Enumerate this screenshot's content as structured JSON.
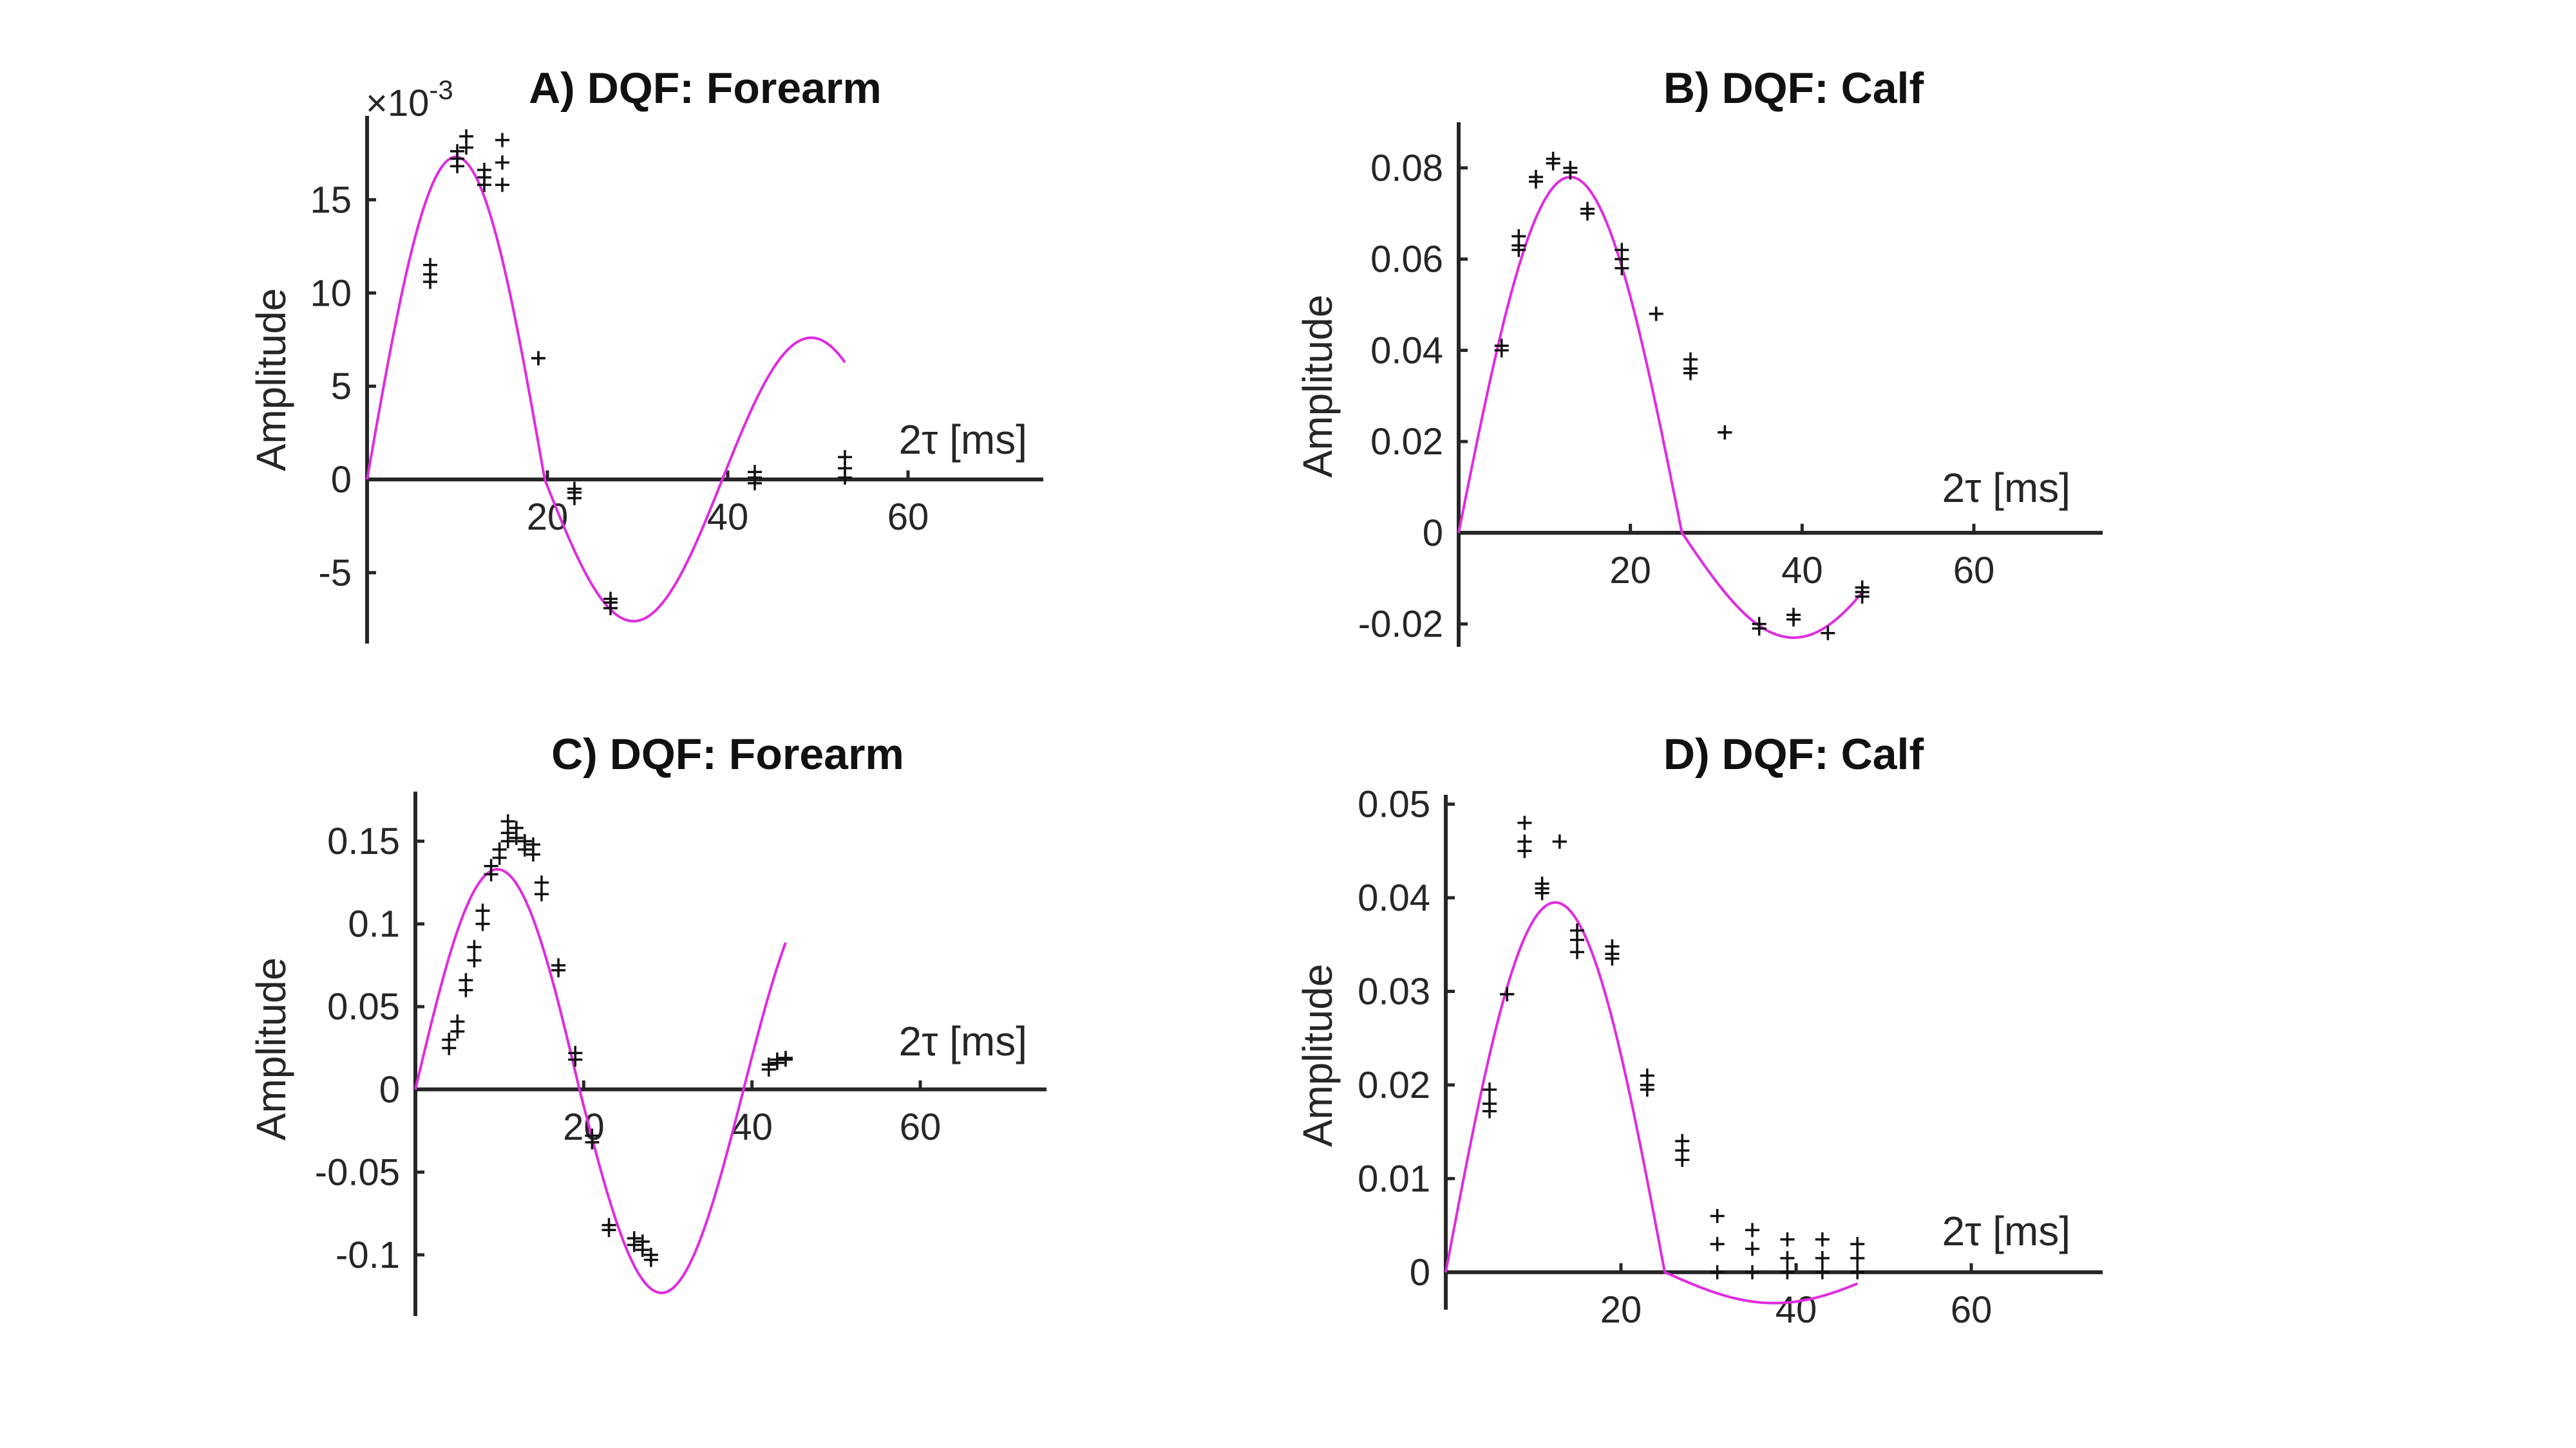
{
  "chart_data": [
    {
      "id": "A",
      "type": "scatter",
      "title": "A) DQF: Forearm",
      "xlabel": "2τ [ms]",
      "ylabel": "Amplitude",
      "y_exponent_label": "×10",
      "y_exponent_power": "-3",
      "xlim": [
        0,
        75
      ],
      "ylim": [
        -8.8,
        19.5
      ],
      "xticks": [
        20,
        40,
        60
      ],
      "yticks": [
        -5,
        0,
        5,
        10,
        15
      ],
      "points": [
        [
          7,
          11.5
        ],
        [
          7,
          10.6
        ],
        [
          7,
          11.0
        ],
        [
          10,
          17.6
        ],
        [
          10,
          16.8
        ],
        [
          10,
          17.2
        ],
        [
          11,
          18.4
        ],
        [
          11,
          17.8
        ],
        [
          13,
          16.6
        ],
        [
          13,
          15.8
        ],
        [
          13,
          16.2
        ],
        [
          15,
          18.2
        ],
        [
          15,
          15.8
        ],
        [
          15,
          17.0
        ],
        [
          19,
          6.5
        ],
        [
          19,
          6.5
        ],
        [
          23,
          -0.5
        ],
        [
          23,
          -1.0
        ],
        [
          23,
          -0.7
        ],
        [
          27,
          -6.4
        ],
        [
          27,
          -6.9
        ],
        [
          27,
          -6.6
        ],
        [
          43,
          0.4
        ],
        [
          43,
          -0.2
        ],
        [
          43,
          0.1
        ],
        [
          53,
          1.2
        ],
        [
          53,
          0.1
        ],
        [
          53,
          0.6
        ]
      ],
      "fit": {
        "A": 17.3,
        "B": 7.6,
        "T": 39.4,
        "shift": 0.62,
        "x_end": 53
      }
    },
    {
      "id": "B",
      "type": "scatter",
      "title": "B) DQF: Calf",
      "xlabel": "2τ [ms]",
      "ylabel": "Amplitude",
      "xlim": [
        0,
        75
      ],
      "ylim": [
        -0.025,
        0.09
      ],
      "xticks": [
        20,
        40,
        60
      ],
      "yticks": [
        -0.02,
        0,
        0.02,
        0.04,
        0.06,
        0.08
      ],
      "y_tick_labels": [
        "-0.02",
        "0",
        "0.02",
        "0.04",
        "0.06",
        "0.08"
      ],
      "points": [
        [
          5,
          0.041
        ],
        [
          5,
          0.04
        ],
        [
          7,
          0.065
        ],
        [
          7,
          0.062
        ],
        [
          7,
          0.063
        ],
        [
          9,
          0.078
        ],
        [
          9,
          0.077
        ],
        [
          11,
          0.082
        ],
        [
          11,
          0.081
        ],
        [
          13,
          0.08
        ],
        [
          13,
          0.079
        ],
        [
          15,
          0.071
        ],
        [
          15,
          0.07
        ],
        [
          19,
          0.062
        ],
        [
          19,
          0.058
        ],
        [
          19,
          0.06
        ],
        [
          23,
          0.048
        ],
        [
          23,
          0.048
        ],
        [
          27,
          0.038
        ],
        [
          27,
          0.035
        ],
        [
          27,
          0.036
        ],
        [
          31,
          0.022
        ],
        [
          31,
          0.022
        ],
        [
          35,
          -0.02
        ],
        [
          35,
          -0.021
        ],
        [
          39,
          -0.018
        ],
        [
          39,
          -0.019
        ],
        [
          43,
          -0.022
        ],
        [
          47,
          -0.012
        ],
        [
          47,
          -0.014
        ],
        [
          47,
          -0.013
        ]
      ],
      "fit": {
        "A": 0.078,
        "B": 0.023,
        "T": 52,
        "shift": 0.5,
        "x_end": 47
      }
    },
    {
      "id": "C",
      "type": "scatter",
      "title": "C) DQF: Forearm",
      "xlabel": "2τ [ms]",
      "ylabel": "Amplitude",
      "xlim": [
        0,
        75
      ],
      "ylim": [
        -0.137,
        0.18
      ],
      "xticks": [
        20,
        40,
        60
      ],
      "yticks": [
        -0.1,
        -0.05,
        0,
        0.05,
        0.1,
        0.15
      ],
      "y_tick_labels": [
        "-0.1",
        "-0.05",
        "0",
        "0.05",
        "0.1",
        "0.15"
      ],
      "points": [
        [
          4,
          0.025
        ],
        [
          4,
          0.03
        ],
        [
          5,
          0.035
        ],
        [
          5,
          0.041
        ],
        [
          6,
          0.06
        ],
        [
          6,
          0.066
        ],
        [
          7,
          0.078
        ],
        [
          7,
          0.086
        ],
        [
          8,
          0.1
        ],
        [
          8,
          0.108
        ],
        [
          9,
          0.13
        ],
        [
          9,
          0.135
        ],
        [
          10,
          0.14
        ],
        [
          10,
          0.145
        ],
        [
          11,
          0.15
        ],
        [
          11,
          0.155
        ],
        [
          11,
          0.162
        ],
        [
          12,
          0.158
        ],
        [
          12,
          0.152
        ],
        [
          13,
          0.15
        ],
        [
          13,
          0.145
        ],
        [
          14,
          0.148
        ],
        [
          14,
          0.142
        ],
        [
          15,
          0.125
        ],
        [
          15,
          0.118
        ],
        [
          17,
          0.075
        ],
        [
          17,
          0.072
        ],
        [
          19,
          0.022
        ],
        [
          19,
          0.018
        ],
        [
          21,
          -0.028
        ],
        [
          21,
          -0.032
        ],
        [
          23,
          -0.082
        ],
        [
          23,
          -0.085
        ],
        [
          26,
          -0.09
        ],
        [
          26,
          -0.094
        ],
        [
          27,
          -0.092
        ],
        [
          27,
          -0.097
        ],
        [
          28,
          -0.1
        ],
        [
          28,
          -0.103
        ],
        [
          42,
          0.015
        ],
        [
          42,
          0.012
        ],
        [
          43,
          0.018
        ],
        [
          43,
          0.016
        ],
        [
          44,
          0.019
        ],
        [
          44,
          0.018
        ]
      ],
      "fit": {
        "A": 0.133,
        "B": 0.123,
        "T": 39,
        "shift": 0.58,
        "x_end": 44
      }
    },
    {
      "id": "D",
      "type": "scatter",
      "title": "D) DQF: Calf",
      "xlabel": "2τ [ms]",
      "ylabel": "Amplitude",
      "xlim": [
        0,
        75
      ],
      "ylim": [
        -0.004,
        0.051
      ],
      "xticks": [
        20,
        40,
        60
      ],
      "yticks": [
        0,
        0.01,
        0.02,
        0.03,
        0.04,
        0.05
      ],
      "y_tick_labels": [
        "0",
        "0.01",
        "0.02",
        "0.03",
        "0.04",
        "0.05"
      ],
      "points": [
        [
          5,
          0.0195
        ],
        [
          5,
          0.0172
        ],
        [
          5,
          0.018
        ],
        [
          7,
          0.0297
        ],
        [
          7,
          0.0297
        ],
        [
          9,
          0.048
        ],
        [
          9,
          0.045
        ],
        [
          9,
          0.046
        ],
        [
          11,
          0.0415
        ],
        [
          11,
          0.0405
        ],
        [
          11,
          0.041
        ],
        [
          13,
          0.046
        ],
        [
          13,
          0.046
        ],
        [
          15,
          0.0365
        ],
        [
          15,
          0.0342
        ],
        [
          15,
          0.0355
        ],
        [
          19,
          0.0348
        ],
        [
          19,
          0.0335
        ],
        [
          19,
          0.034
        ],
        [
          23,
          0.021
        ],
        [
          23,
          0.0195
        ],
        [
          23,
          0.02
        ],
        [
          27,
          0.014
        ],
        [
          27,
          0.012
        ],
        [
          27,
          0.013
        ],
        [
          31,
          0.006
        ],
        [
          31,
          0.0
        ],
        [
          31,
          0.003
        ],
        [
          35,
          0.0045
        ],
        [
          35,
          0.0
        ],
        [
          35,
          0.0025
        ],
        [
          39,
          0.0035
        ],
        [
          39,
          0.0
        ],
        [
          39,
          0.0015
        ],
        [
          43,
          0.0035
        ],
        [
          43,
          0.0
        ],
        [
          43,
          0.0015
        ],
        [
          47,
          0.003
        ],
        [
          47,
          0.0
        ],
        [
          47,
          0.0015
        ]
      ],
      "fit": {
        "A": 0.0395,
        "B": 0.0033,
        "T": 50,
        "shift": 0.5,
        "x_end": 47
      }
    }
  ]
}
